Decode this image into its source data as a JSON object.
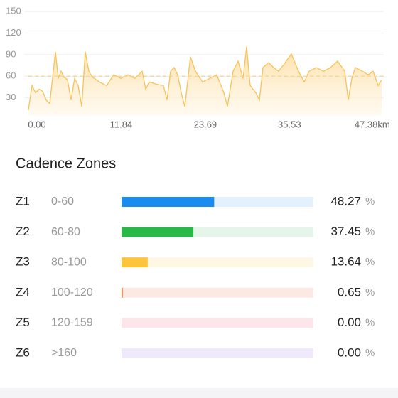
{
  "chart_data": {
    "type": "area",
    "x": [
      0,
      0.5,
      1,
      1.5,
      2,
      2.5,
      3,
      3.5,
      3.8,
      4.2,
      4.6,
      5,
      5.5,
      6,
      6.5,
      7,
      7.5,
      8,
      8.5,
      9,
      10,
      11,
      12,
      13,
      14,
      15,
      16,
      16.5,
      17,
      18,
      19,
      19.5,
      20,
      20.5,
      21,
      21.5,
      22,
      22.8,
      23.5,
      24.5,
      25.5,
      26.5,
      27.5,
      28,
      28.8,
      29.5,
      30.2,
      30.7,
      31.2,
      32,
      32.5,
      33,
      33.8,
      34.5,
      35.2,
      36,
      37,
      38,
      38.8,
      39.5,
      40.5,
      41.5,
      42.5,
      43.5,
      44.5,
      45,
      45.5,
      46,
      47,
      47.8,
      48.5,
      49.2,
      49.7
    ],
    "values": [
      13,
      47,
      37,
      42,
      39,
      27,
      22,
      67,
      94,
      57,
      67,
      59,
      55,
      27,
      57,
      47,
      18,
      94,
      67,
      59,
      52,
      47,
      62,
      57,
      62,
      57,
      67,
      42,
      52,
      49,
      47,
      27,
      67,
      72,
      62,
      37,
      18,
      87,
      67,
      52,
      57,
      62,
      37,
      18,
      67,
      81,
      57,
      101,
      47,
      37,
      27,
      72,
      79,
      72,
      67,
      77,
      91,
      67,
      52,
      67,
      72,
      67,
      72,
      81,
      67,
      27,
      57,
      72,
      67,
      62,
      67,
      47,
      55
    ],
    "color": "#f7c25a",
    "xlim": [
      0,
      50
    ],
    "ylim": [
      0,
      160
    ],
    "yticks": [
      30,
      60,
      90,
      120,
      150
    ],
    "xticks": [
      {
        "value": 0,
        "label": "0.00"
      },
      {
        "value": 11.84,
        "label": "11.84"
      },
      {
        "value": 23.69,
        "label": "23.69"
      },
      {
        "value": 35.53,
        "label": "35.53"
      },
      {
        "value": 47.38,
        "label": "47.38km"
      }
    ],
    "reference_line": 60,
    "grid": true
  },
  "zones": {
    "title": "Cadence Zones",
    "unit": "%",
    "xlim": [
      0,
      100
    ],
    "rows": [
      {
        "name": "Z1",
        "range": "0-60",
        "value": 48.27,
        "value_label": "48.27",
        "color": "#1a8cf0",
        "track": "#e3f1fd"
      },
      {
        "name": "Z2",
        "range": "60-80",
        "value": 37.45,
        "value_label": "37.45",
        "color": "#27b845",
        "track": "#e6f5ea"
      },
      {
        "name": "Z3",
        "range": "80-100",
        "value": 13.64,
        "value_label": "13.64",
        "color": "#fbc43a",
        "track": "#fdf7e4"
      },
      {
        "name": "Z4",
        "range": "100-120",
        "value": 0.65,
        "value_label": "0.65",
        "color": "#f07a3a",
        "track": "#fde9e4"
      },
      {
        "name": "Z5",
        "range": "120-159",
        "value": 0,
        "value_label": "0.00",
        "color": "#f25a6a",
        "track": "#fde6ea"
      },
      {
        "name": "Z6",
        "range": ">160",
        "value": 0,
        "value_label": "0.00",
        "color": "#9b7ce0",
        "track": "#efe9fb"
      }
    ]
  }
}
